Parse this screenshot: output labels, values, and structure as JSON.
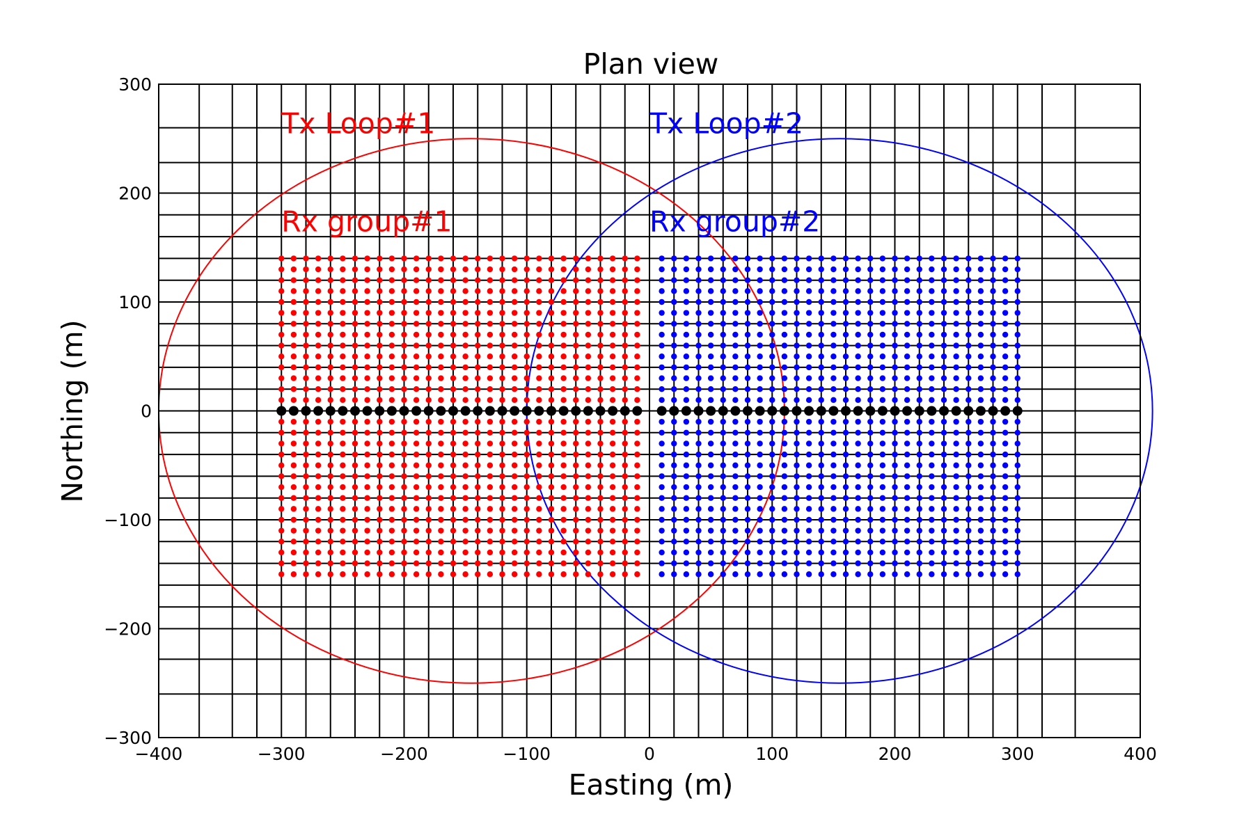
{
  "chart_data": {
    "type": "scatter",
    "title": "Plan view",
    "xlabel": "Easting (m)",
    "ylabel": "Northing (m)",
    "xlim": [
      -400,
      400
    ],
    "ylim": [
      -300,
      300
    ],
    "xticks": [
      -400,
      -300,
      -200,
      -100,
      0,
      100,
      200,
      300,
      400
    ],
    "yticks": [
      -300,
      -200,
      -100,
      0,
      100,
      200,
      300
    ],
    "xtick_labels": [
      "−400",
      "−300",
      "−200",
      "−100",
      "0",
      "100",
      "200",
      "300",
      "400"
    ],
    "ytick_labels": [
      "−300",
      "−200",
      "−100",
      "0",
      "100",
      "200",
      "300"
    ],
    "grid": true,
    "mesh_x_lines": [
      -400,
      -367,
      -340,
      -320,
      -300,
      -280,
      -260,
      -240,
      -220,
      -200,
      -180,
      -160,
      -140,
      -120,
      -100,
      -80,
      -60,
      -40,
      -20,
      0,
      20,
      40,
      60,
      80,
      100,
      120,
      140,
      160,
      180,
      200,
      220,
      240,
      260,
      280,
      300,
      320,
      347,
      400
    ],
    "mesh_y_lines": [
      -300,
      -260,
      -228,
      -200,
      -180,
      -160,
      -140,
      -120,
      -100,
      -80,
      -60,
      -40,
      -20,
      0,
      20,
      40,
      60,
      80,
      100,
      120,
      140,
      160,
      180,
      200,
      228,
      260,
      300
    ],
    "loops": [
      {
        "name": "Tx Loop#1",
        "center": [
          -145,
          0
        ],
        "rx": 255,
        "ry": 250,
        "color": "#ff0000"
      },
      {
        "name": "Tx Loop#2",
        "center": [
          155,
          0
        ],
        "rx": 255,
        "ry": 250,
        "color": "#0000ff"
      }
    ],
    "receiver_groups": [
      {
        "name": "Rx group#1",
        "color": "#ff0000",
        "x_start": -300,
        "x_end": -10,
        "y_start": -150,
        "y_end": 140,
        "spacing": 10
      },
      {
        "name": "Rx group#2",
        "color": "#0000ff",
        "x_start": 10,
        "x_end": 300,
        "y_start": -150,
        "y_end": 140,
        "spacing": 10
      }
    ],
    "profile_points": {
      "color": "#000000",
      "y": 0,
      "x_start": -300,
      "x_end": 300,
      "spacing": 10,
      "skip_zero": true
    },
    "annotations": [
      {
        "text": "Tx Loop#1",
        "x": -300,
        "y": 255,
        "color": "#ff0000"
      },
      {
        "text": "Tx Loop#2",
        "x": 0,
        "y": 255,
        "color": "#0000ff"
      },
      {
        "text": "Rx group#1",
        "x": -300,
        "y": 165,
        "color": "#ff0000"
      },
      {
        "text": "Rx group#2",
        "x": 0,
        "y": 165,
        "color": "#0000ff"
      }
    ]
  }
}
